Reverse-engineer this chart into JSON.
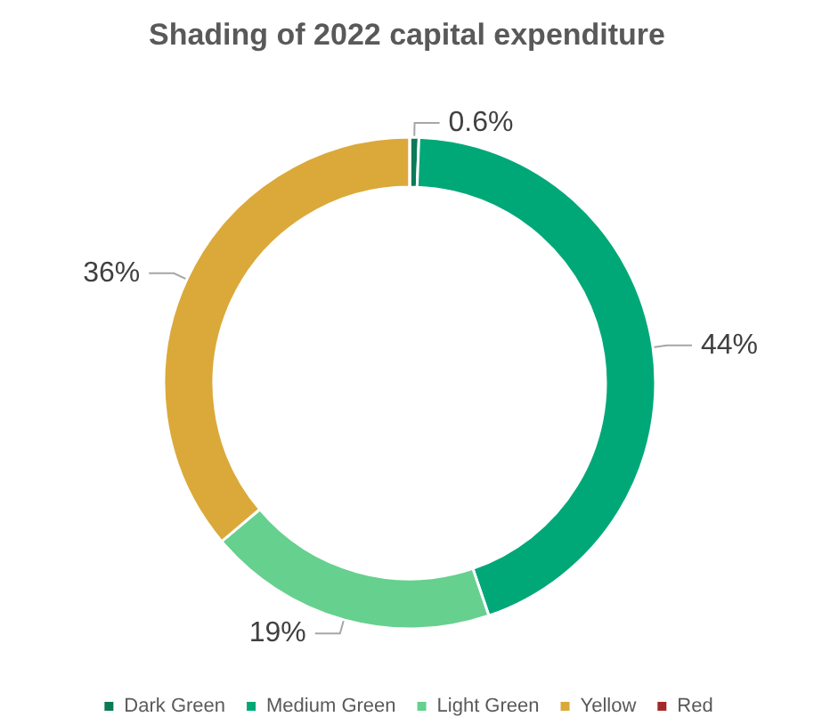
{
  "chart_data": {
    "type": "donut",
    "title": "Shading of 2022 capital expenditure",
    "categories": [
      "Dark Green",
      "Medium Green",
      "Light Green",
      "Yellow",
      "Red"
    ],
    "values": [
      0.6,
      44,
      19,
      36,
      0
    ],
    "value_labels": [
      "0.6%",
      "44%",
      "19%",
      "36%",
      null
    ],
    "colors": [
      "#0b7a57",
      "#00a878",
      "#66d08f",
      "#dba93a",
      "#a32a2a"
    ],
    "legend": "bottom"
  }
}
